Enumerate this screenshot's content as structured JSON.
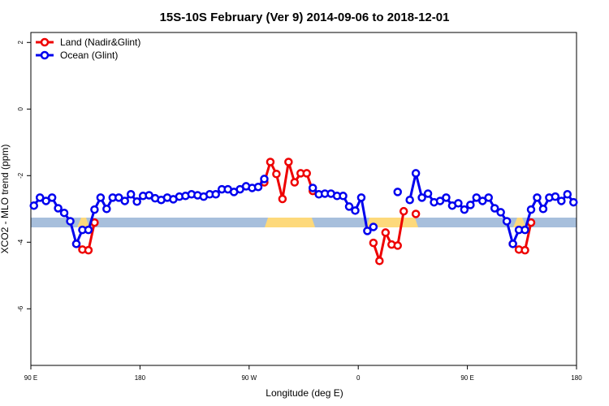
{
  "chart_data": {
    "type": "line",
    "title": "15S-10S February (Ver 9)   2014-09-06 to 2018-12-01",
    "x_label": "Longitude (deg E)",
    "y_label": "XCO2 - MLO trend (ppm)",
    "x": [
      92.5,
      97.5,
      102.5,
      107.5,
      112.5,
      117.5,
      122.5,
      127.5,
      132.5,
      137.5,
      142.5,
      147.5,
      152.5,
      157.5,
      162.5,
      167.5,
      172.5,
      177.5,
      182.5,
      187.5,
      192.5,
      197.5,
      202.5,
      207.5,
      212.5,
      217.5,
      222.5,
      227.5,
      232.5,
      237.5,
      242.5,
      247.5,
      252.5,
      257.5,
      262.5,
      267.5,
      272.5,
      277.5,
      282.5,
      287.5,
      292.5,
      297.5,
      302.5,
      307.5,
      312.5,
      317.5,
      322.5,
      327.5,
      332.5,
      337.5,
      342.5,
      347.5,
      352.5,
      357.5,
      362.5,
      367.5,
      372.5,
      377.5,
      382.5,
      387.5,
      392.5,
      397.5,
      402.5,
      407.5,
      412.5,
      417.5,
      422.5,
      427.5,
      432.5,
      437.5,
      442.5,
      447.5,
      452.5,
      457.5,
      462.5,
      467.5,
      472.5,
      477.5,
      482.5,
      487.5,
      492.5,
      497.5,
      502.5,
      507.5,
      512.5,
      517.5,
      522.5,
      527.5,
      532.5,
      537.5
    ],
    "series": [
      {
        "name": "Land (Nadir&Glint)",
        "color": "#ee0000",
        "values": [
          null,
          null,
          null,
          null,
          null,
          null,
          null,
          -4.05,
          -4.22,
          -4.24,
          -3.41,
          null,
          null,
          null,
          null,
          null,
          null,
          null,
          null,
          null,
          null,
          null,
          null,
          null,
          null,
          null,
          null,
          null,
          null,
          null,
          null,
          null,
          null,
          null,
          null,
          null,
          null,
          null,
          -2.2,
          -1.59,
          -1.95,
          -2.7,
          -1.59,
          -2.2,
          -1.93,
          -1.93,
          -2.46,
          null,
          null,
          null,
          null,
          null,
          null,
          null,
          null,
          null,
          -4.02,
          -4.56,
          -3.71,
          -4.07,
          -4.1,
          -3.07,
          null,
          -3.15,
          null,
          null,
          null,
          null,
          null,
          null,
          null,
          null,
          null,
          null,
          null,
          null,
          null,
          null,
          null,
          -4.05,
          -4.22,
          -4.24,
          -3.41,
          null,
          null,
          null,
          null,
          null,
          null,
          null
        ]
      },
      {
        "name": "Ocean (Glint)",
        "color": "#0000ee",
        "values": [
          -2.9,
          -2.66,
          -2.76,
          -2.66,
          -2.98,
          -3.12,
          -3.37,
          -4.05,
          -3.63,
          -3.63,
          -3.02,
          -2.66,
          -3.0,
          -2.66,
          -2.66,
          -2.76,
          -2.56,
          -2.78,
          -2.61,
          -2.59,
          -2.68,
          -2.73,
          -2.66,
          -2.71,
          -2.63,
          -2.61,
          -2.56,
          -2.59,
          -2.63,
          -2.56,
          -2.56,
          -2.41,
          -2.41,
          -2.49,
          -2.41,
          -2.32,
          -2.37,
          -2.34,
          -2.1,
          null,
          null,
          null,
          null,
          null,
          null,
          null,
          -2.37,
          -2.56,
          -2.54,
          -2.54,
          -2.61,
          -2.61,
          -2.93,
          -3.05,
          -2.66,
          -3.66,
          -3.54,
          null,
          null,
          null,
          -2.49,
          null,
          -2.73,
          -1.93,
          -2.66,
          -2.54,
          -2.8,
          -2.76,
          -2.66,
          -2.9,
          -2.83,
          -3.02,
          -2.88,
          -2.66,
          -2.76,
          -2.66,
          -2.98,
          -3.1,
          -3.37,
          -4.05,
          -3.63,
          -3.63,
          -3.02,
          -2.66,
          -3.0,
          -2.66,
          -2.63,
          -2.76,
          -2.56,
          -2.8
        ]
      }
    ],
    "xlim": [
      90,
      540
    ],
    "xticks": [
      {
        "value": 90,
        "label": "90 E"
      },
      180,
      {
        "value": 270,
        "label": "90 W"
      },
      {
        "value": 360,
        "label": "0"
      },
      {
        "value": 450,
        "label": "90 E"
      },
      {
        "value": 540,
        "label": "180"
      }
    ],
    "ylim": [
      -7.7,
      2.3
    ],
    "yticks": [
      2,
      0,
      -2,
      -4,
      -6
    ],
    "legend": "top-left"
  }
}
